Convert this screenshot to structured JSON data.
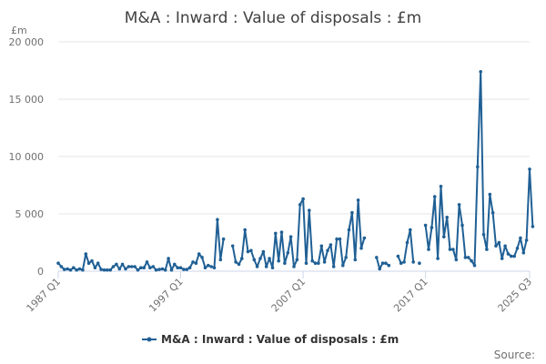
{
  "chart_data": {
    "type": "line",
    "title": "M&A : Inward : Value of disposals : £m",
    "unit_label": "£m",
    "ylim": [
      0,
      20000
    ],
    "yticks": [
      {
        "value": 0,
        "label": "0"
      },
      {
        "value": 5000,
        "label": "5 000"
      },
      {
        "value": 10000,
        "label": "10 000"
      },
      {
        "value": 15000,
        "label": "15 000"
      },
      {
        "value": 20000,
        "label": "20 000"
      }
    ],
    "xticks": [
      {
        "value": 1987.0,
        "label": "1987 Q1"
      },
      {
        "value": 1997.0,
        "label": "1997 Q1"
      },
      {
        "value": 2007.0,
        "label": "2007 Q1"
      },
      {
        "value": 2017.0,
        "label": "2017 Q1"
      },
      {
        "value": 2025.5,
        "label": "2025 Q3"
      }
    ],
    "xlim": [
      1987.0,
      2025.5
    ],
    "grid": true,
    "legend_position": "bottom",
    "color": "#206095",
    "series": [
      {
        "name": "M&A : Inward : Value of disposals : £m",
        "x_start": "1987 Q1",
        "values": [
          700,
          400,
          150,
          200,
          100,
          300,
          100,
          200,
          100,
          1500,
          700,
          900,
          300,
          700,
          150,
          100,
          100,
          100,
          400,
          600,
          200,
          600,
          200,
          400,
          400,
          400,
          100,
          300,
          300,
          800,
          300,
          400,
          100,
          150,
          200,
          100,
          1100,
          100,
          600,
          300,
          300,
          150,
          150,
          300,
          800,
          700,
          1500,
          1200,
          300,
          500,
          400,
          300,
          4500,
          1000,
          2800,
          null,
          null,
          2200,
          800,
          600,
          1100,
          3600,
          1700,
          1800,
          1000,
          400,
          1100,
          1700,
          400,
          1100,
          300,
          3300,
          900,
          3400,
          700,
          1600,
          3000,
          400,
          1000,
          5800,
          6300,
          700,
          5300,
          900,
          700,
          700,
          2200,
          800,
          1800,
          2300,
          400,
          2800,
          2800,
          500,
          1200,
          3600,
          5100,
          1000,
          6200,
          2000,
          2900,
          null,
          null,
          null,
          1200,
          200,
          700,
          700,
          500,
          null,
          null,
          1300,
          700,
          800,
          2500,
          3600,
          800,
          null,
          700,
          null,
          4000,
          1900,
          3800,
          6500,
          1100,
          7400,
          3000,
          4700,
          1900,
          1900,
          1000,
          5800,
          4000,
          1200,
          1200,
          900,
          500,
          9100,
          17400,
          3200,
          1900,
          6700,
          5100,
          2200,
          2500,
          1100,
          2200,
          1500,
          1300,
          1300,
          2000,
          2900,
          1600,
          2700,
          8900,
          3900
        ]
      }
    ],
    "legend_label": "M&A : Inward : Value of disposals : £m",
    "source_label": "Source:"
  }
}
